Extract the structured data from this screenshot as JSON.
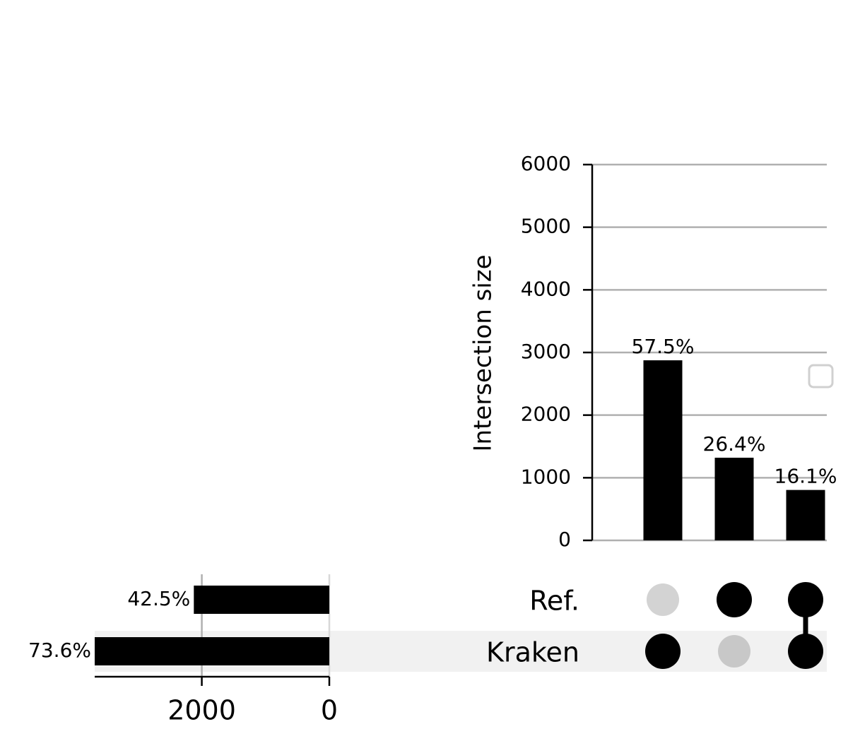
{
  "chart_data": {
    "type": "upset",
    "ylabel": "Intersection size",
    "sets": [
      "Ref.",
      "Kraken"
    ],
    "set_sizes": [
      2125,
      3680
    ],
    "set_size_labels": [
      "42.5%",
      "73.6%"
    ],
    "set_xlim": [
      3680,
      0
    ],
    "set_xticks": [
      2000,
      0
    ],
    "intersections": [
      [
        false,
        true
      ],
      [
        true,
        false
      ],
      [
        true,
        true
      ]
    ],
    "values": [
      2875,
      1320,
      805
    ],
    "value_labels": [
      "57.5%",
      "26.4%",
      "16.1%"
    ],
    "ylim": [
      0,
      6000
    ],
    "yticks": [
      0,
      1000,
      2000,
      3000,
      4000,
      5000,
      6000
    ],
    "grid": true,
    "color": "#000000"
  }
}
